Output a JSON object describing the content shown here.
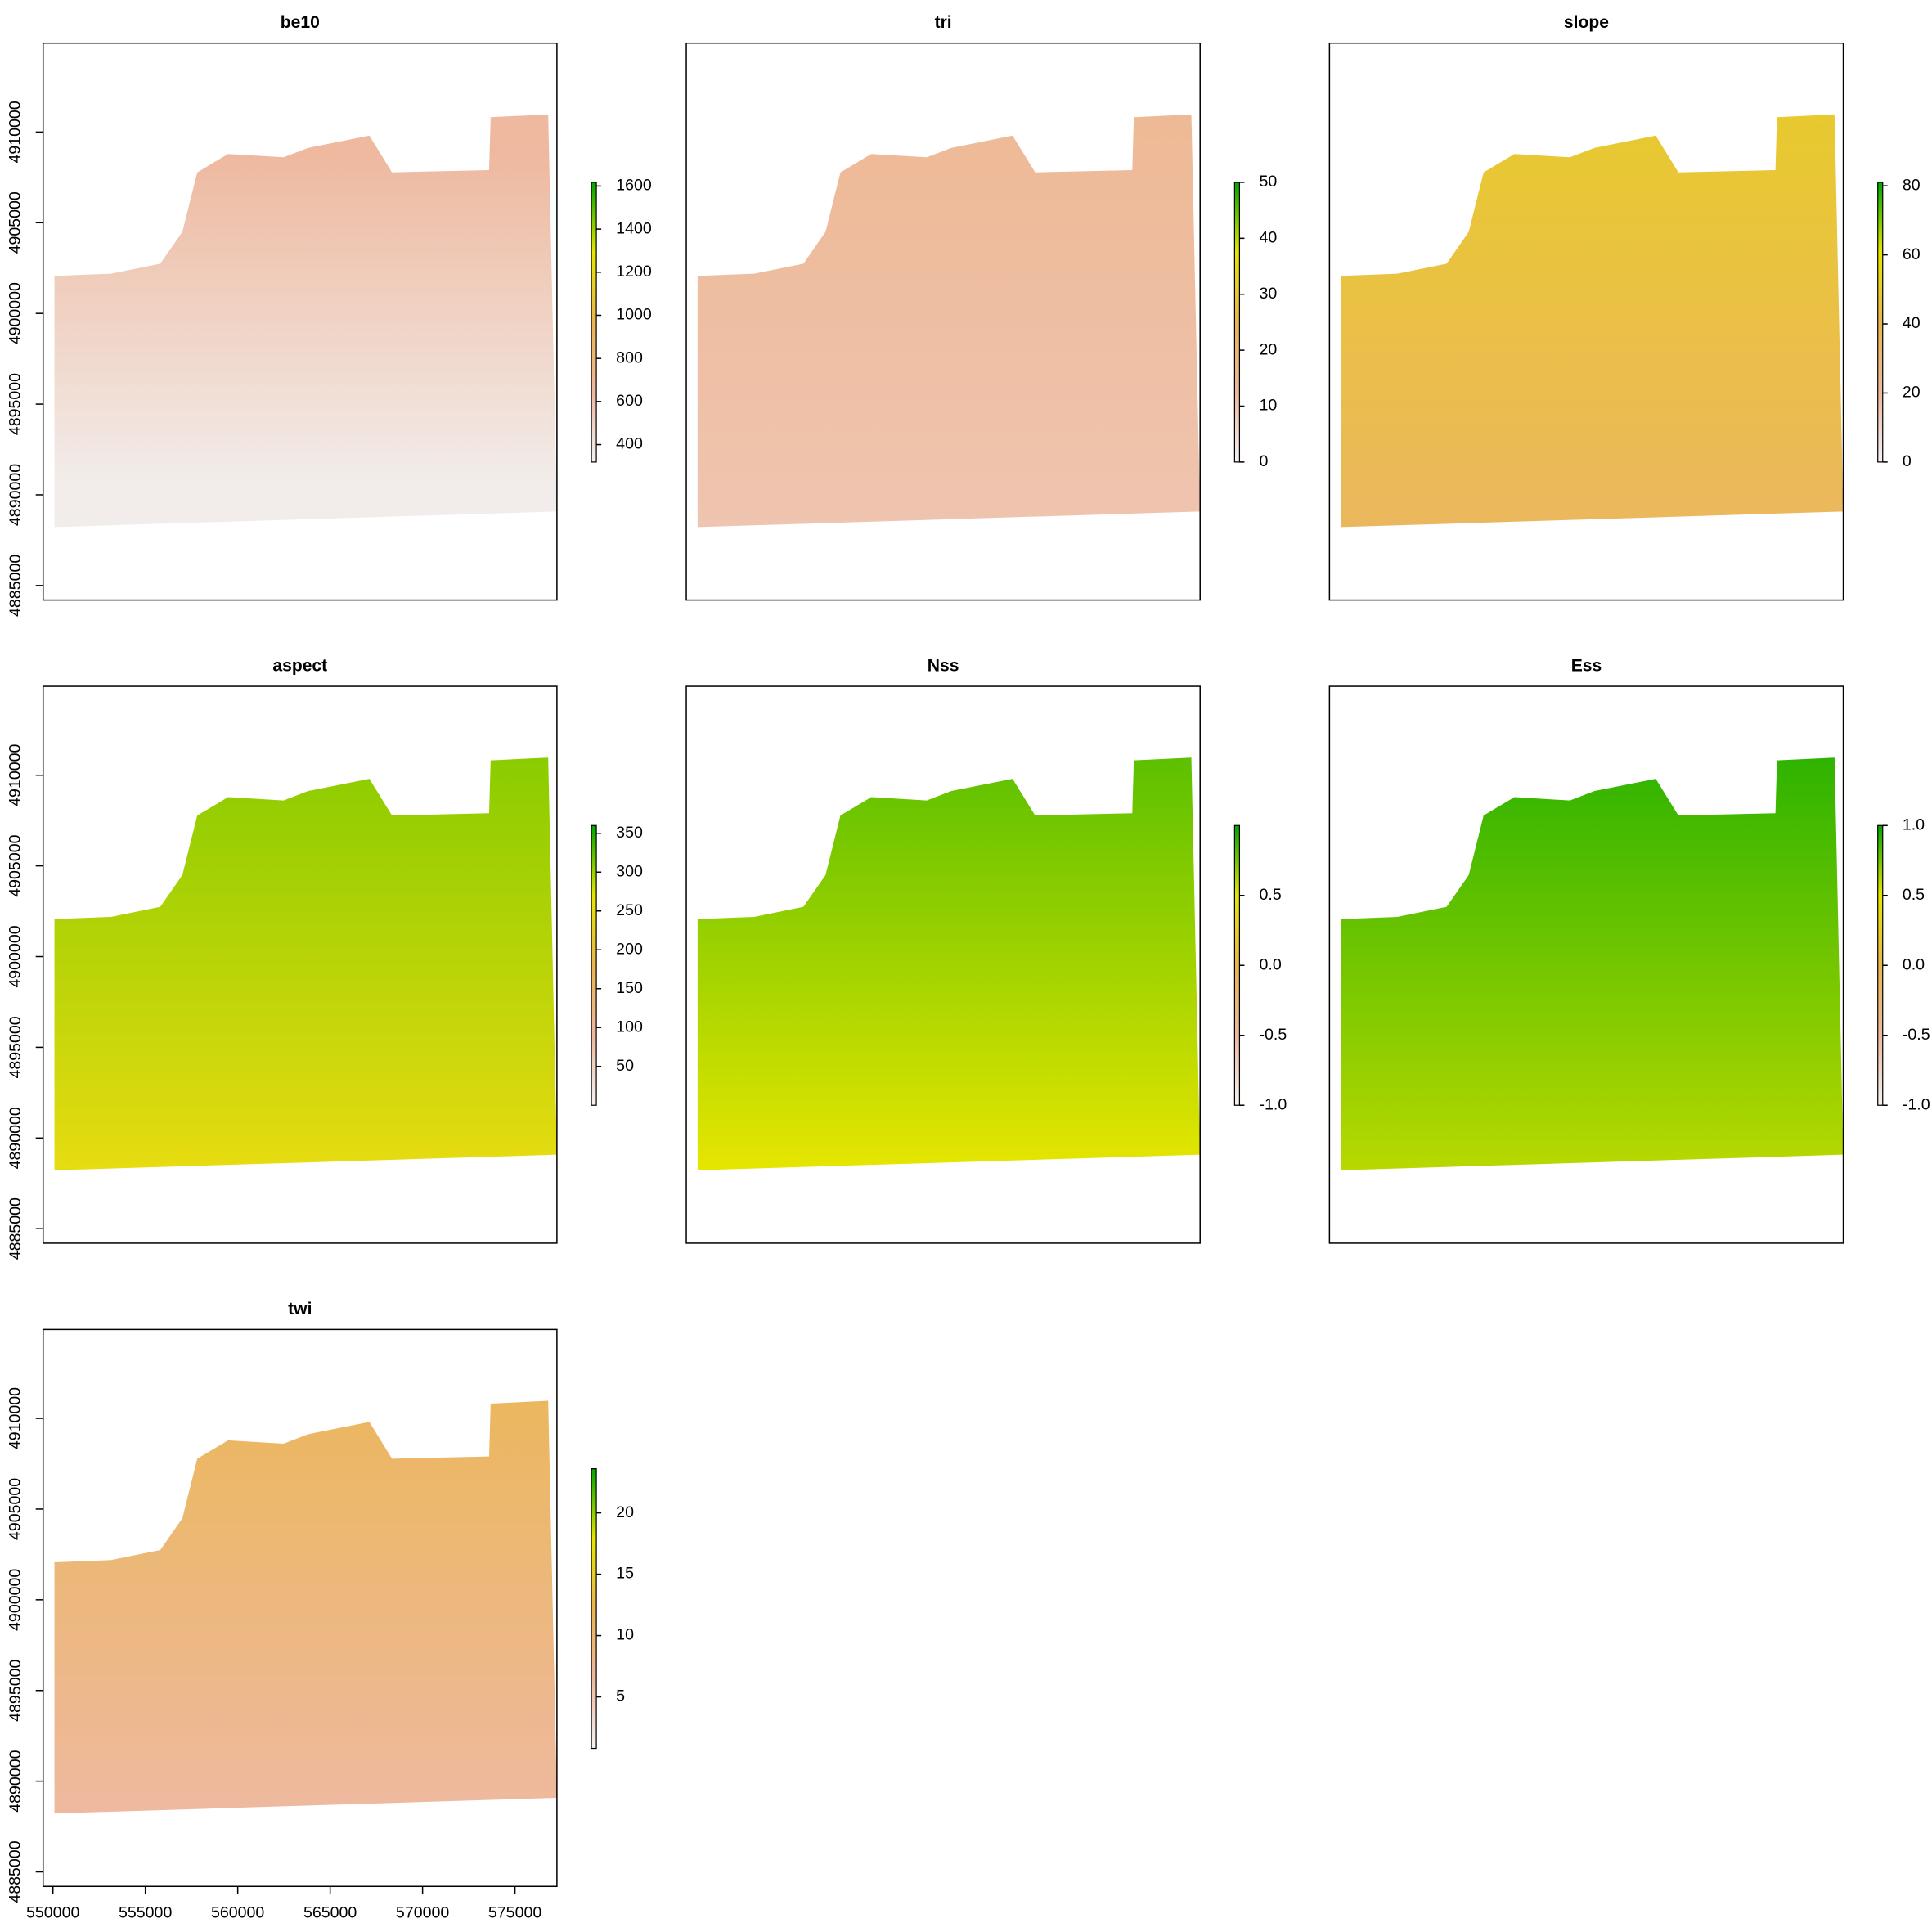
{
  "chart_data": [
    {
      "type": "raster",
      "title": "be10",
      "xlim": [
        549470,
        577270
      ],
      "ylim": [
        4884200,
        4914900
      ],
      "yticks": [
        4885000,
        4890000,
        4895000,
        4900000,
        4905000,
        4910000
      ],
      "zlim": [
        319,
        1617
      ],
      "zticks": [
        400,
        600,
        800,
        1000,
        1200,
        1400,
        1600
      ],
      "colors": [
        "#F2F2F2",
        "#EEB99F",
        "#EAB64E",
        "#E6E600",
        "#00A600"
      ]
    },
    {
      "type": "raster",
      "title": "tri",
      "xlim": [
        549470,
        577270
      ],
      "ylim": [
        4884200,
        4914900
      ],
      "zlim": [
        0,
        50
      ],
      "zticks": [
        0,
        10,
        20,
        30,
        40,
        50
      ],
      "colors": [
        "#F2F2F2",
        "#EEB99F",
        "#EAB64E",
        "#E6E600",
        "#00A600"
      ]
    },
    {
      "type": "raster",
      "title": "slope",
      "xlim": [
        549470,
        577270
      ],
      "ylim": [
        4884200,
        4914900
      ],
      "zlim": [
        0,
        81
      ],
      "zticks": [
        0,
        20,
        40,
        60,
        80
      ],
      "colors": [
        "#F2F2F2",
        "#EEB99F",
        "#EAB64E",
        "#E6E600",
        "#00A600"
      ]
    },
    {
      "type": "raster",
      "title": "aspect",
      "xlim": [
        549470,
        577270
      ],
      "ylim": [
        4884200,
        4914900
      ],
      "yticks": [
        4885000,
        4890000,
        4895000,
        4900000,
        4905000,
        4910000
      ],
      "zlim": [
        0,
        360
      ],
      "zticks": [
        50,
        100,
        150,
        200,
        250,
        300,
        350
      ],
      "colors": [
        "#F2F2F2",
        "#EEB99F",
        "#EAB64E",
        "#E6E600",
        "#00A600"
      ]
    },
    {
      "type": "raster",
      "title": "Nss",
      "xlim": [
        549470,
        577270
      ],
      "ylim": [
        4884200,
        4914900
      ],
      "zlim": [
        -1,
        1
      ],
      "zticks": [
        {
          "value": -1,
          "label": "-1.0"
        },
        {
          "value": -0.5,
          "label": "-0.5"
        },
        {
          "value": 0,
          "label": "0.0"
        },
        {
          "value": 0.5,
          "label": "0.5"
        }
      ],
      "colors": [
        "#F2F2F2",
        "#EEB99F",
        "#EAB64E",
        "#E6E600",
        "#00A600"
      ]
    },
    {
      "type": "raster",
      "title": "Ess",
      "xlim": [
        549470,
        577270
      ],
      "ylim": [
        4884200,
        4914900
      ],
      "zlim": [
        -1,
        1
      ],
      "zticks": [
        {
          "value": -1,
          "label": "-1.0"
        },
        {
          "value": -0.5,
          "label": "-0.5"
        },
        {
          "value": 0,
          "label": "0.0"
        },
        {
          "value": 0.5,
          "label": "0.5"
        },
        {
          "value": 1,
          "label": "1.0"
        }
      ],
      "colors": [
        "#F2F2F2",
        "#EEB99F",
        "#EAB64E",
        "#E6E600",
        "#00A600"
      ]
    },
    {
      "type": "raster",
      "title": "twi",
      "xlim": [
        549470,
        577270
      ],
      "ylim": [
        4884200,
        4914900
      ],
      "yticks": [
        4885000,
        4890000,
        4895000,
        4900000,
        4905000,
        4910000
      ],
      "xticks": [
        550000,
        555000,
        560000,
        565000,
        570000,
        575000
      ],
      "zlim": [
        0.8,
        23.6
      ],
      "zticks": [
        5,
        10,
        15,
        20
      ],
      "colors": [
        "#F2F2F2",
        "#EEB99F",
        "#EAB64E",
        "#E6E600",
        "#00A600"
      ]
    }
  ]
}
